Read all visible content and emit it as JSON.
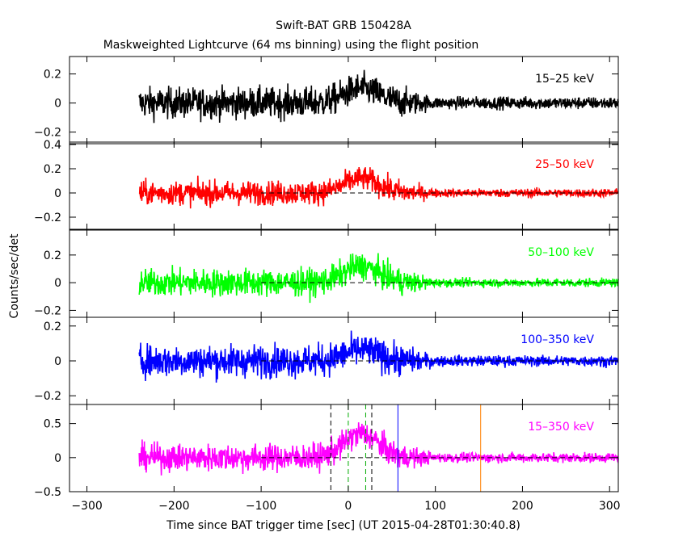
{
  "header": {
    "title": "Swift-BAT GRB 150428A",
    "subtitle": "Maskweighted Lightcurve (64 ms binning) using the flight position"
  },
  "axes": {
    "xlabel": "Time since BAT trigger time [sec] (UT 2015-04-28T01:30:40.8)",
    "ylabel": "Counts/sec/det",
    "xlim": [
      -320,
      310
    ],
    "xticks": [
      -300,
      -200,
      -100,
      0,
      100,
      200,
      300
    ],
    "xtick_labels": [
      "−300",
      "−200",
      "−100",
      "0",
      "100",
      "200",
      "300"
    ]
  },
  "chart_data": {
    "type": "line",
    "binning_s": 0.064,
    "data_start": -240,
    "data_end": 310,
    "quiet_after": 80,
    "panels": [
      {
        "name": "15–25 keV",
        "color": "#000000",
        "ylim": [
          -0.28,
          0.32
        ],
        "yticks": [
          -0.2,
          0,
          0.2
        ],
        "ytick_labels": [
          "−0.2",
          "0",
          "0.2"
        ],
        "noise_pre": 0.075,
        "noise_post": 0.03,
        "bump_peak": 0.1,
        "zero_line": false,
        "vlines": []
      },
      {
        "name": "25–50 keV",
        "color": "#ff0000",
        "ylim": [
          -0.3,
          0.42
        ],
        "yticks": [
          -0.2,
          0,
          0.2,
          0.4
        ],
        "ytick_labels": [
          "−0.2",
          "0",
          "0.2",
          "0.4"
        ],
        "noise_pre": 0.07,
        "noise_post": 0.025,
        "bump_peak": 0.12,
        "zero_line": true,
        "vlines": []
      },
      {
        "name": "50–100 keV",
        "color": "#00ff00",
        "ylim": [
          -0.25,
          0.38
        ],
        "yticks": [
          -0.2,
          0,
          0.2
        ],
        "ytick_labels": [
          "−0.2",
          "0",
          "0.2"
        ],
        "noise_pre": 0.07,
        "noise_post": 0.022,
        "bump_peak": 0.12,
        "zero_line": true,
        "vlines": []
      },
      {
        "name": "100–350 keV",
        "color": "#0000ff",
        "ylim": [
          -0.25,
          0.25
        ],
        "yticks": [
          -0.2,
          0,
          0.2
        ],
        "ytick_labels": [
          "−0.2",
          "0",
          "0.2"
        ],
        "noise_pre": 0.065,
        "noise_post": 0.022,
        "bump_peak": 0.06,
        "zero_line": true,
        "vlines": []
      },
      {
        "name": "15–350 keV",
        "color": "#ff00ff",
        "ylim": [
          -0.5,
          0.78
        ],
        "yticks": [
          -0.5,
          0,
          0.5
        ],
        "ytick_labels": [
          "−0.5",
          "0",
          "0.5"
        ],
        "noise_pre": 0.14,
        "noise_post": 0.05,
        "bump_peak": 0.35,
        "zero_line": true,
        "vlines": [
          {
            "x": -20,
            "color": "#000000",
            "style": "dash"
          },
          {
            "x": 0,
            "color": "#00aa00",
            "style": "dash"
          },
          {
            "x": 20,
            "color": "#00aa00",
            "style": "dash"
          },
          {
            "x": 27,
            "color": "#000000",
            "style": "dash"
          },
          {
            "x": 57,
            "color": "#0000ff",
            "style": "solid"
          },
          {
            "x": 152,
            "color": "#ff8000",
            "style": "solid"
          }
        ]
      }
    ]
  }
}
